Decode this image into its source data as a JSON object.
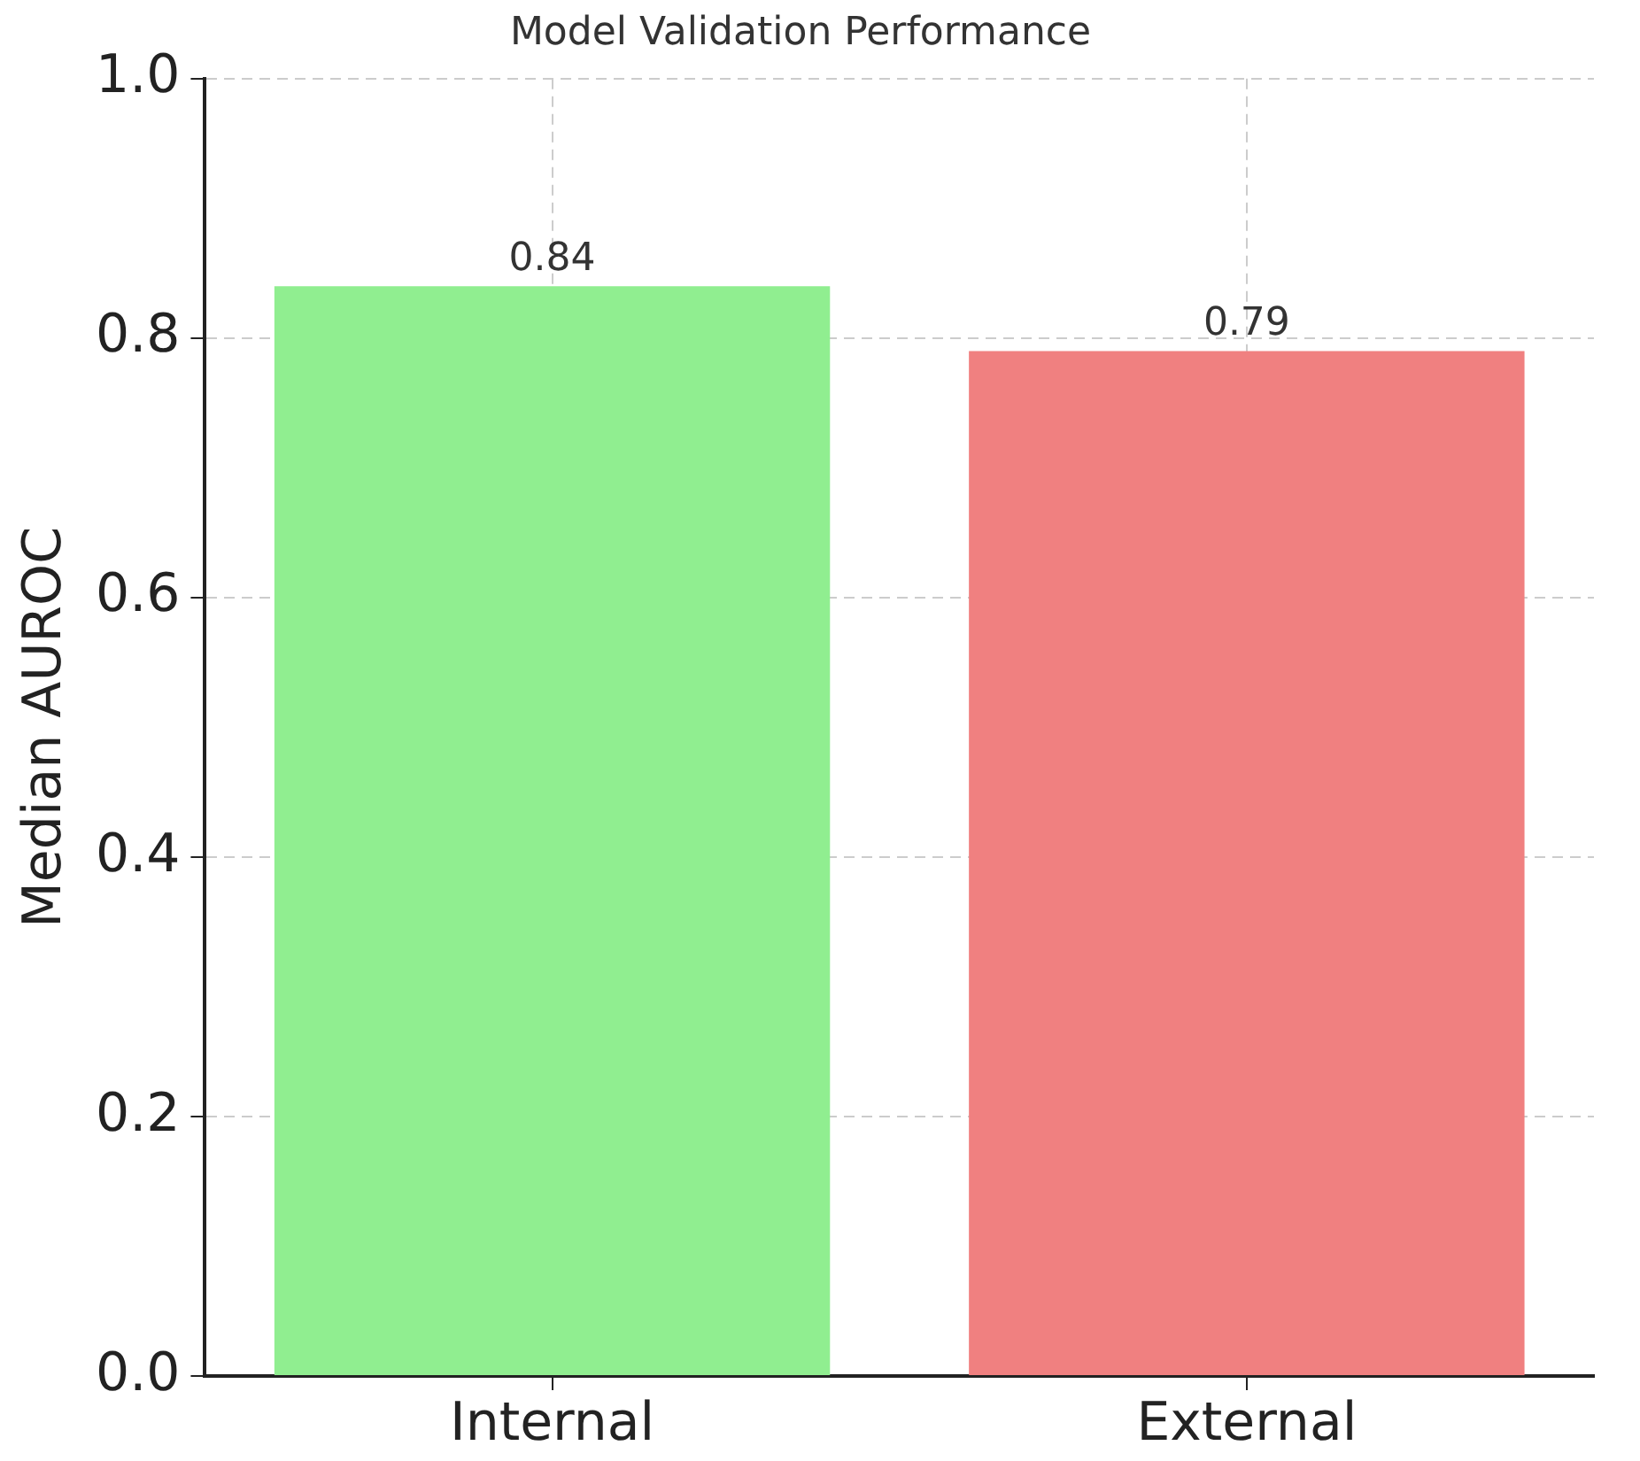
{
  "chart_data": {
    "type": "bar",
    "title": "Model Validation Performance",
    "ylabel": "Median AUROC",
    "categories": [
      "Internal",
      "External"
    ],
    "values": [
      0.84,
      0.79
    ],
    "colors": [
      "#90ee90",
      "#f08080"
    ],
    "ylim": [
      0,
      1
    ],
    "yticks": [
      {
        "value": 0,
        "label": "0.0"
      },
      {
        "value": 0.2,
        "label": "0.2"
      },
      {
        "value": 0.4,
        "label": "0.4"
      },
      {
        "value": 0.6,
        "label": "0.6"
      },
      {
        "value": 0.8,
        "label": "0.8"
      },
      {
        "value": 1,
        "label": "1.0"
      }
    ],
    "grid": true,
    "legend": false,
    "data_labels": true
  }
}
